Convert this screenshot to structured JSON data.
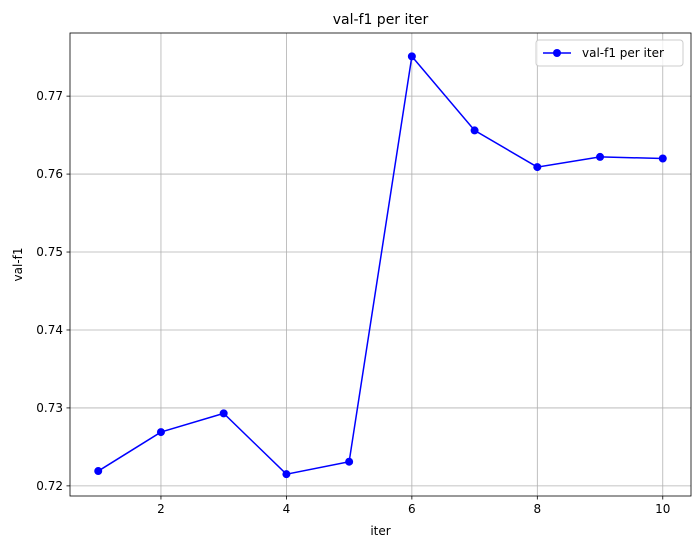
{
  "chart_data": {
    "type": "line",
    "title": "val-f1 per iter",
    "xlabel": "iter",
    "ylabel": "val-f1",
    "xlim": [
      0.55,
      10.45
    ],
    "ylim": [
      0.7187,
      0.7781
    ],
    "x_ticks": [
      2,
      4,
      6,
      8,
      10
    ],
    "y_ticks": [
      0.72,
      0.73,
      0.74,
      0.75,
      0.76,
      0.77
    ],
    "x_tick_labels": [
      "2",
      "4",
      "6",
      "8",
      "10"
    ],
    "y_tick_labels": [
      "0.72",
      "0.73",
      "0.74",
      "0.75",
      "0.76",
      "0.77"
    ],
    "grid": true,
    "legend_position": "top-right",
    "series": [
      {
        "name": "val-f1 per iter",
        "color": "#0000ff",
        "marker": "circle",
        "x": [
          1,
          2,
          3,
          4,
          5,
          6,
          7,
          8,
          9,
          10
        ],
        "y": [
          0.7219,
          0.7269,
          0.7293,
          0.7215,
          0.7231,
          0.7751,
          0.7656,
          0.7609,
          0.7622,
          0.762
        ]
      }
    ]
  }
}
